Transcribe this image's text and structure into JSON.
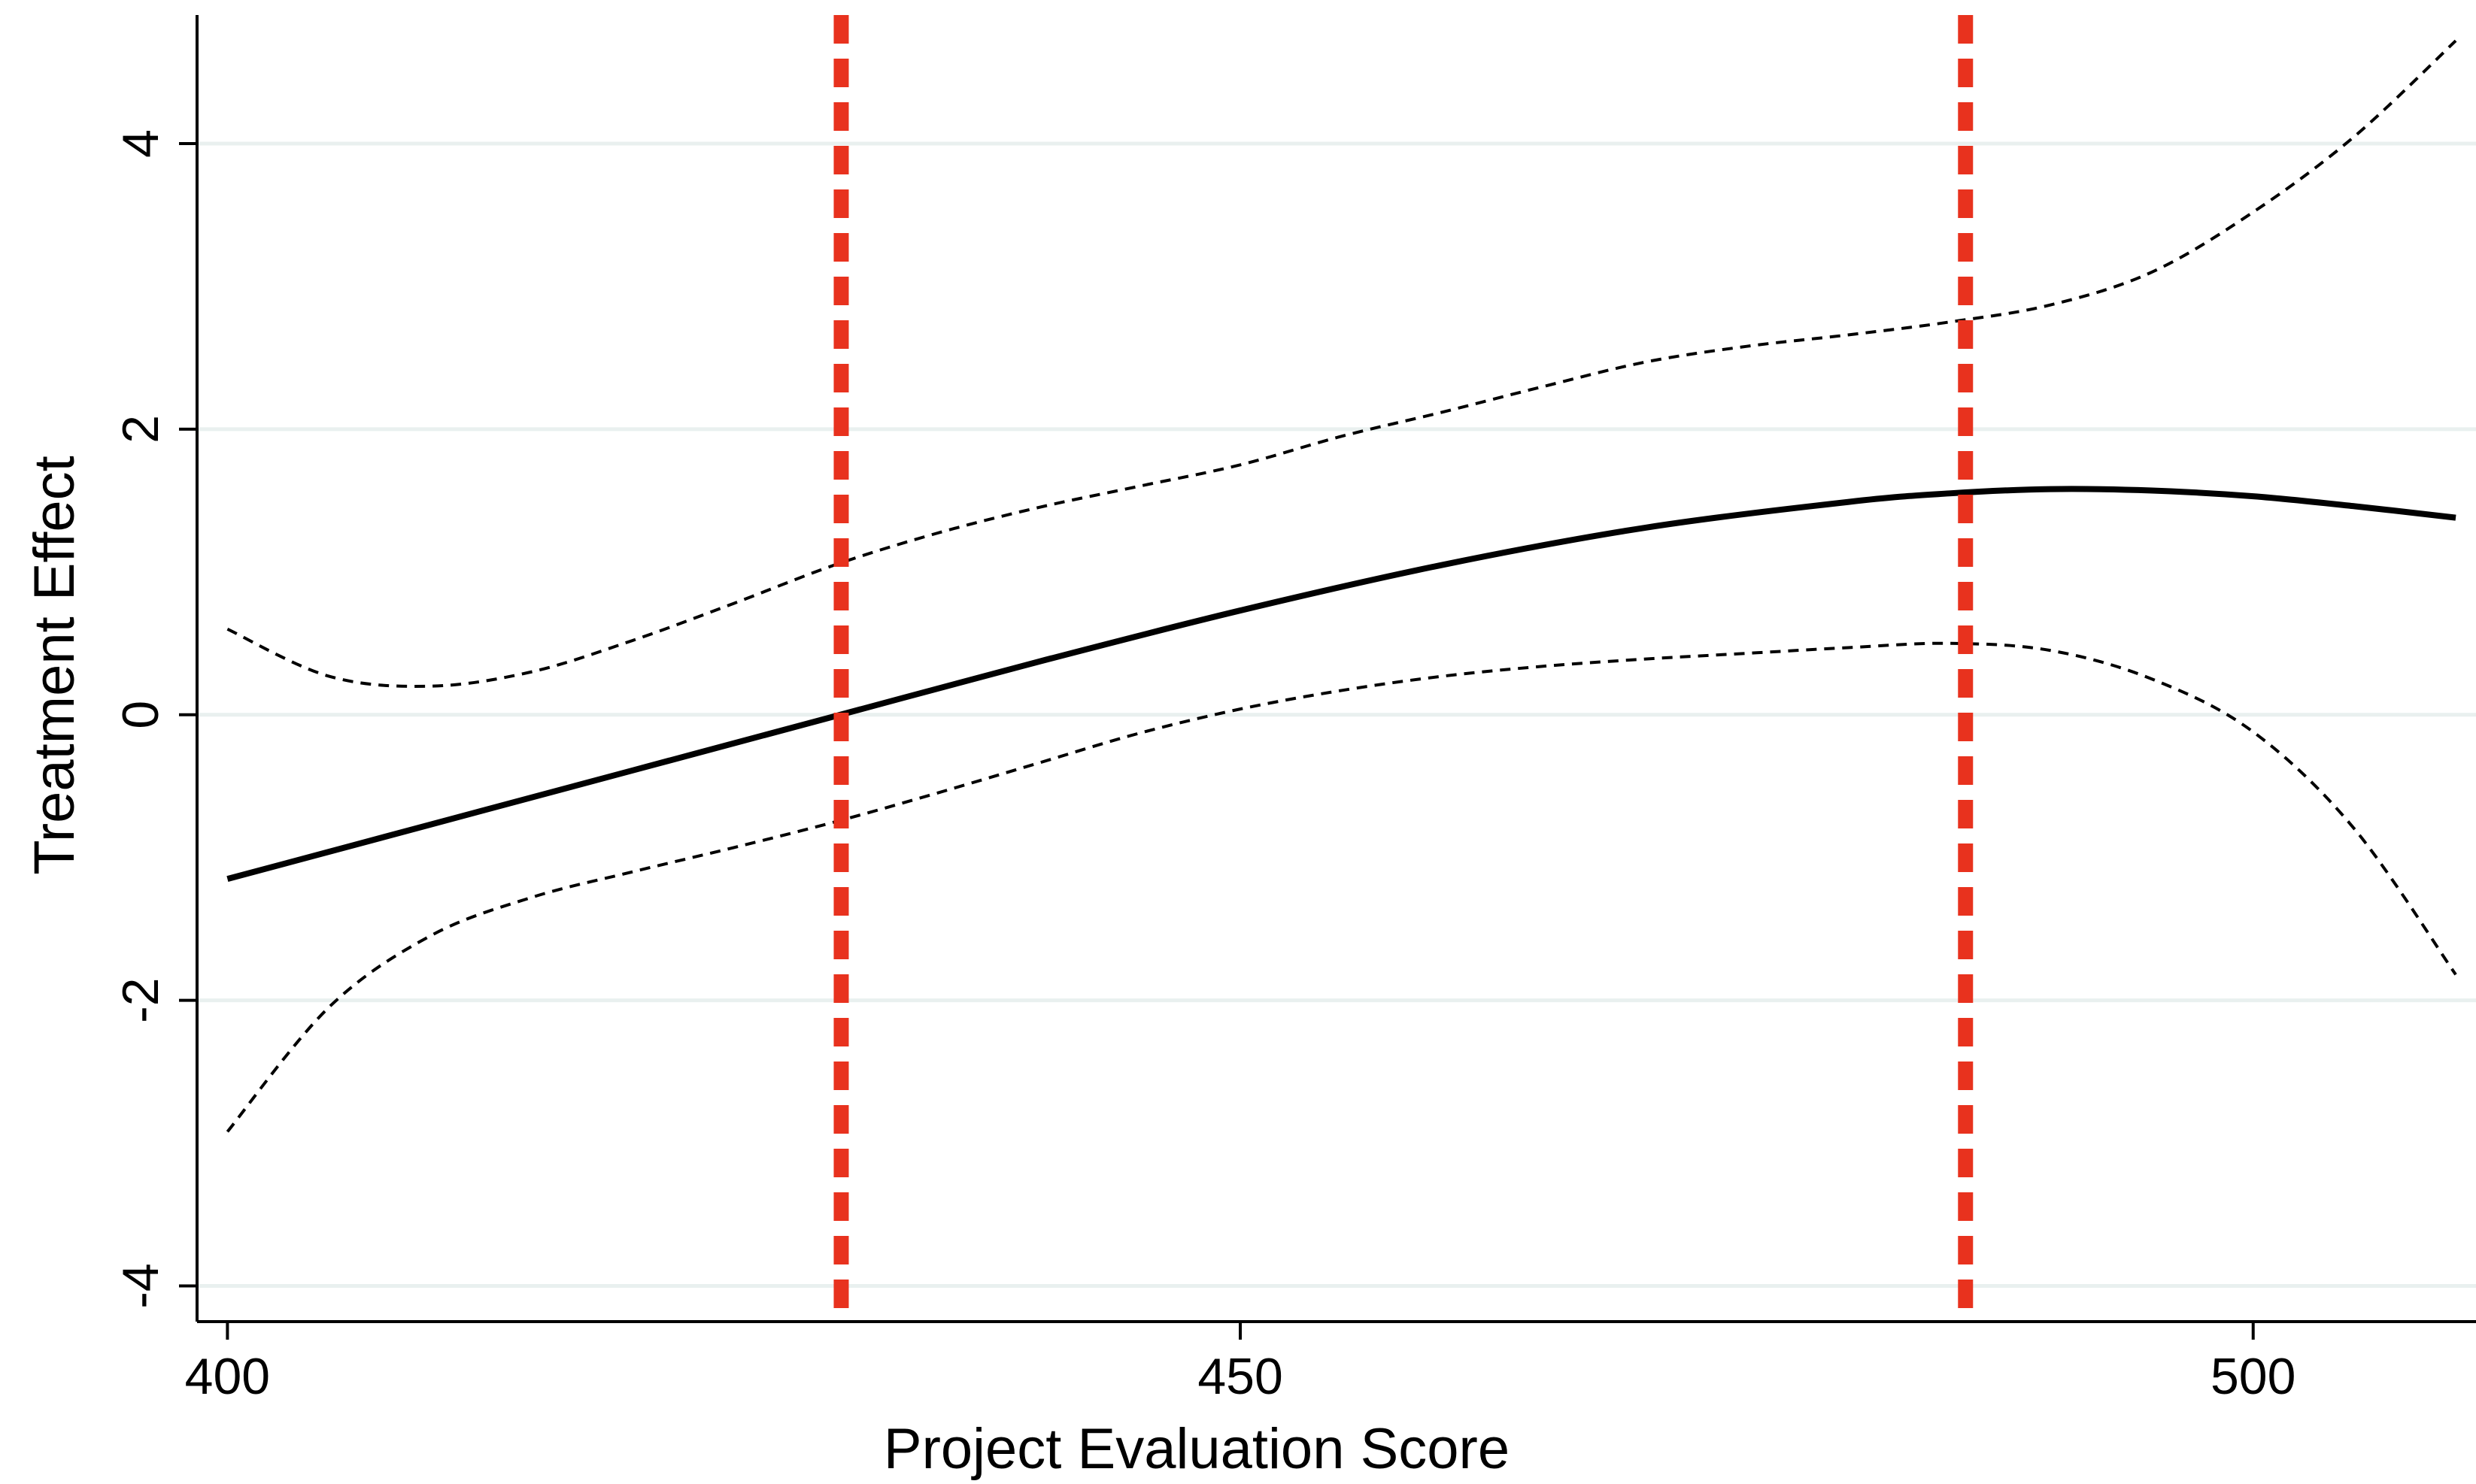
{
  "chart_data": {
    "type": "line",
    "title": "",
    "xlabel": "Project Evaluation Score",
    "ylabel": "Treatment Effect",
    "xlim": [
      398.5,
      511
    ],
    "ylim": [
      -4.25,
      4.9
    ],
    "xticks": [
      400,
      450,
      500
    ],
    "yticks": [
      -4,
      -2,
      0,
      2,
      4
    ],
    "grid": "horizontal",
    "colors": {
      "estimate": "#000000",
      "ci": "#000000",
      "reference": "#e8321e",
      "grid": "#e9f0ef"
    },
    "series": [
      {
        "style": "solid",
        "x": [
          400,
          410,
          420,
          430,
          440,
          450,
          460,
          470,
          480,
          485,
          490,
          495,
          500,
          505,
          510
        ],
        "y": [
          -1.15,
          -0.77,
          -0.39,
          -0.01,
          0.37,
          0.73,
          1.05,
          1.31,
          1.49,
          1.55,
          1.58,
          1.57,
          1.53,
          1.46,
          1.38
        ]
      },
      {
        "style": "dashed",
        "x": [
          400,
          405,
          410,
          415,
          420,
          425,
          430,
          435,
          440,
          445,
          450,
          455,
          460,
          465,
          470,
          475,
          480,
          485,
          490,
          495,
          500,
          505,
          510
        ],
        "y": [
          0.6,
          0.27,
          0.2,
          0.3,
          0.52,
          0.78,
          1.05,
          1.27,
          1.45,
          1.6,
          1.75,
          1.95,
          2.12,
          2.3,
          2.47,
          2.58,
          2.66,
          2.75,
          2.87,
          3.1,
          3.52,
          4.05,
          4.72
        ]
      },
      {
        "style": "dashed",
        "x": [
          400,
          405,
          410,
          415,
          420,
          425,
          430,
          435,
          440,
          445,
          450,
          455,
          460,
          465,
          470,
          475,
          480,
          485,
          490,
          495,
          500,
          505,
          510
        ],
        "y": [
          -2.92,
          -2.05,
          -1.55,
          -1.28,
          -1.1,
          -0.93,
          -0.75,
          -0.55,
          -0.34,
          -0.13,
          0.04,
          0.17,
          0.27,
          0.34,
          0.39,
          0.43,
          0.47,
          0.5,
          0.45,
          0.25,
          -0.12,
          -0.8,
          -1.82
        ]
      }
    ],
    "reference_lines": [
      {
        "x": 430.3,
        "style": "dashed"
      },
      {
        "x": 485.8,
        "style": "dashed"
      }
    ]
  }
}
